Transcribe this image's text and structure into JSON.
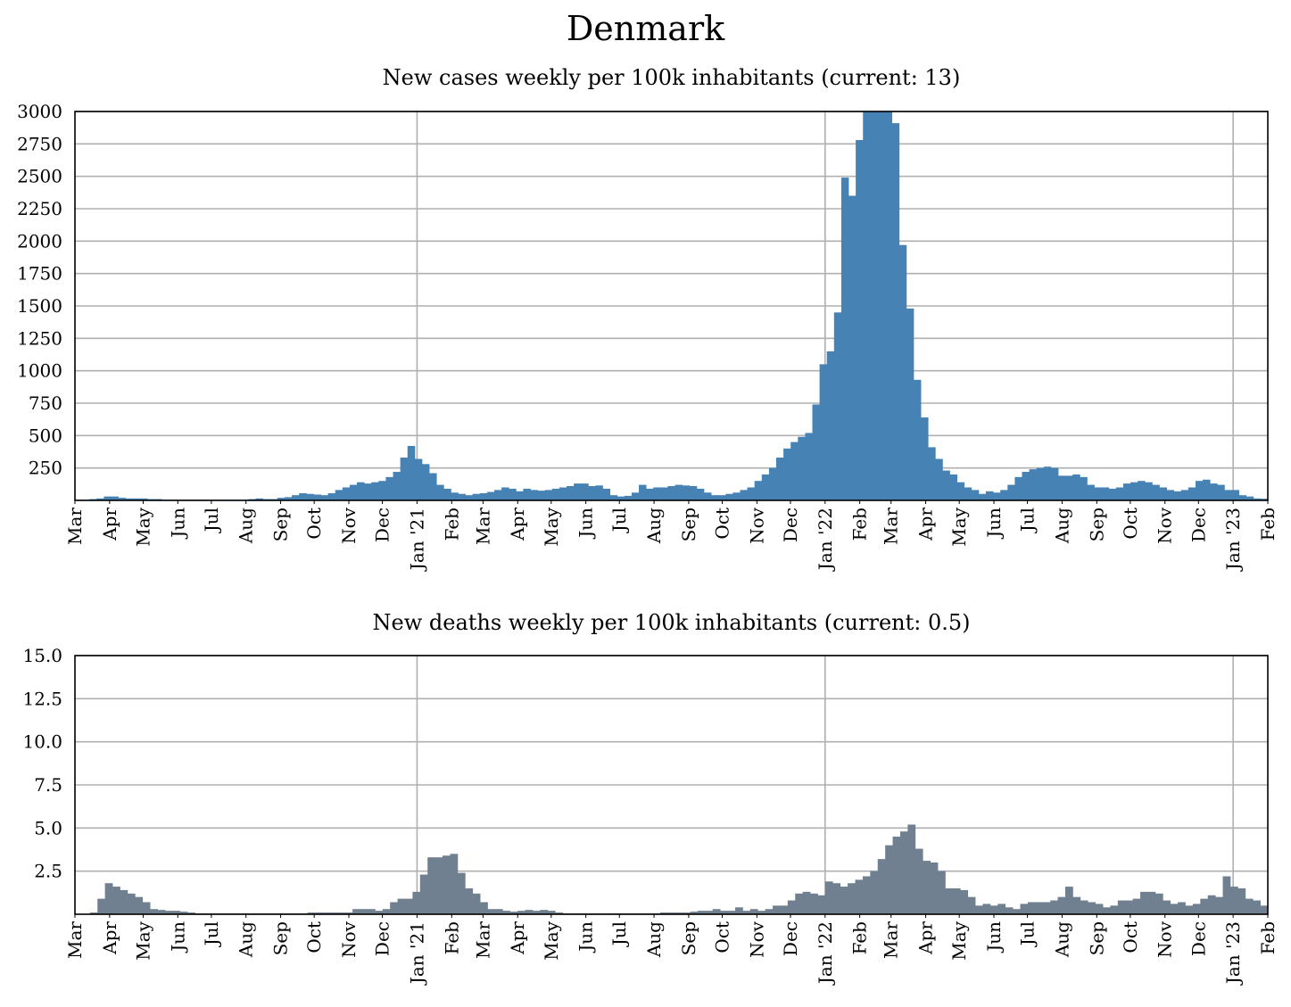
{
  "page": {
    "title": "Denmark"
  },
  "colors": {
    "cases_bar": "#4682b4",
    "deaths_bar": "#708090",
    "grid": "#b0b0b0",
    "axes": "#000000"
  },
  "chart_data": [
    {
      "type": "bar",
      "title": "New cases weekly per 100k inhabitants (current: 13)",
      "xlabel": "",
      "ylabel": "",
      "ylim": [
        0,
        3000
      ],
      "yticks": [
        250,
        500,
        750,
        1000,
        1250,
        1500,
        1750,
        2000,
        2250,
        2500,
        2750,
        3000
      ],
      "grid": true,
      "x_start": "2020-03-01",
      "x_end": "2023-02-01",
      "month_ticks": [
        "Mar",
        "Apr",
        "May",
        "Jun",
        "Jul",
        "Aug",
        "Sep",
        "Oct",
        "Nov",
        "Dec",
        "Jan '21",
        "Feb",
        "Mar",
        "Apr",
        "May",
        "Jun",
        "Jul",
        "Aug",
        "Sep",
        "Oct",
        "Nov",
        "Dec",
        "Jan '22",
        "Feb",
        "Mar",
        "Apr",
        "May",
        "Jun",
        "Jul",
        "Aug",
        "Sep",
        "Oct",
        "Nov",
        "Dec",
        "Jan '23",
        "Feb"
      ],
      "values": [
        5,
        5,
        10,
        15,
        30,
        30,
        20,
        15,
        15,
        15,
        10,
        10,
        5,
        5,
        5,
        5,
        5,
        5,
        5,
        5,
        5,
        5,
        5,
        5,
        10,
        15,
        10,
        10,
        20,
        25,
        40,
        55,
        50,
        45,
        40,
        55,
        80,
        100,
        120,
        140,
        130,
        140,
        150,
        180,
        220,
        330,
        420,
        320,
        280,
        210,
        120,
        90,
        60,
        50,
        40,
        50,
        55,
        65,
        80,
        100,
        90,
        70,
        90,
        80,
        75,
        80,
        90,
        100,
        110,
        130,
        130,
        110,
        115,
        90,
        40,
        30,
        35,
        60,
        120,
        90,
        100,
        100,
        110,
        120,
        115,
        110,
        90,
        60,
        40,
        40,
        50,
        60,
        80,
        100,
        150,
        200,
        250,
        330,
        400,
        450,
        490,
        520,
        740,
        1050,
        1150,
        1450,
        2490,
        2350,
        2780,
        3000,
        3000,
        3000,
        3000,
        2910,
        1970,
        1480,
        930,
        640,
        410,
        320,
        230,
        200,
        140,
        100,
        80,
        50,
        70,
        60,
        80,
        120,
        180,
        220,
        240,
        250,
        260,
        250,
        190,
        190,
        200,
        180,
        120,
        100,
        100,
        90,
        100,
        130,
        140,
        150,
        140,
        120,
        100,
        80,
        70,
        80,
        100,
        150,
        160,
        130,
        120,
        80,
        80,
        40,
        30,
        15,
        13
      ]
    },
    {
      "type": "bar",
      "title": "New deaths weekly per 100k inhabitants (current: 0.5)",
      "xlabel": "",
      "ylabel": "",
      "ylim": [
        0,
        15
      ],
      "yticks": [
        2.5,
        5.0,
        7.5,
        10.0,
        12.5,
        15.0
      ],
      "grid": true,
      "x_start": "2020-03-01",
      "x_end": "2023-02-01",
      "month_ticks": [
        "Mar",
        "Apr",
        "May",
        "Jun",
        "Jul",
        "Aug",
        "Sep",
        "Oct",
        "Nov",
        "Dec",
        "Jan '21",
        "Feb",
        "Mar",
        "Apr",
        "May",
        "Jun",
        "Jul",
        "Aug",
        "Sep",
        "Oct",
        "Nov",
        "Dec",
        "Jan '22",
        "Feb",
        "Mar",
        "Apr",
        "May",
        "Jun",
        "Jul",
        "Aug",
        "Sep",
        "Oct",
        "Nov",
        "Dec",
        "Jan '23",
        "Feb"
      ],
      "values": [
        0,
        0,
        0.1,
        0.9,
        1.8,
        1.6,
        1.4,
        1.2,
        1.0,
        0.7,
        0.3,
        0.25,
        0.2,
        0.2,
        0.15,
        0.1,
        0.05,
        0.05,
        0.05,
        0.05,
        0.05,
        0.05,
        0.05,
        0.05,
        0.05,
        0.05,
        0.05,
        0.05,
        0.05,
        0.05,
        0.05,
        0.1,
        0.1,
        0.1,
        0.1,
        0.1,
        0.1,
        0.3,
        0.3,
        0.3,
        0.2,
        0.3,
        0.7,
        0.9,
        0.9,
        1.3,
        2.3,
        3.3,
        3.3,
        3.4,
        3.5,
        2.4,
        1.5,
        1.2,
        0.7,
        0.3,
        0.3,
        0.2,
        0.15,
        0.2,
        0.25,
        0.2,
        0.25,
        0.2,
        0.1,
        0.05,
        0.05,
        0.05,
        0.05,
        0.05,
        0.05,
        0.05,
        0.05,
        0.05,
        0.05,
        0.05,
        0.05,
        0.05,
        0.1,
        0.1,
        0.1,
        0.1,
        0.15,
        0.2,
        0.2,
        0.3,
        0.2,
        0.2,
        0.4,
        0.2,
        0.3,
        0.2,
        0.3,
        0.5,
        0.5,
        0.8,
        1.2,
        1.3,
        1.2,
        1.1,
        1.9,
        1.8,
        1.6,
        1.8,
        2.0,
        2.2,
        2.5,
        3.2,
        4.0,
        4.5,
        4.8,
        5.2,
        3.8,
        3.1,
        3.0,
        2.5,
        1.5,
        1.5,
        1.4,
        1.0,
        0.5,
        0.6,
        0.5,
        0.6,
        0.4,
        0.3,
        0.6,
        0.7,
        0.7,
        0.7,
        0.8,
        1.0,
        1.6,
        1.0,
        0.8,
        0.7,
        0.6,
        0.4,
        0.5,
        0.8,
        0.8,
        0.9,
        1.3,
        1.3,
        1.2,
        0.8,
        0.6,
        0.7,
        0.5,
        0.6,
        0.9,
        1.1,
        1.0,
        2.2,
        1.6,
        1.5,
        0.9,
        0.8,
        0.5
      ]
    }
  ]
}
